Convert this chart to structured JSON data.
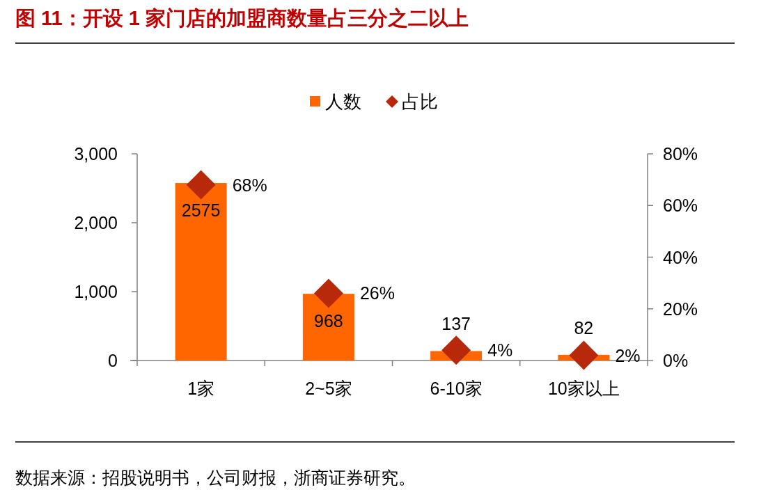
{
  "chart_data": {
    "type": "bar",
    "title": "图 11：开设 1 家门店的加盟商数量占三分之二以上",
    "categories": [
      "1家",
      "2~5家",
      "6-10家",
      "10家以上"
    ],
    "series": [
      {
        "name": "人数",
        "color": "#ff6600",
        "values": [
          2575,
          968,
          137,
          82
        ],
        "value_labels": [
          "2575",
          "968",
          "137",
          "82"
        ]
      },
      {
        "name": "占比",
        "type": "scatter",
        "axis": "y2",
        "color": "#b8290b",
        "values": [
          68,
          26,
          4,
          2
        ],
        "value_labels": [
          "68%",
          "26%",
          "4%",
          "2%"
        ]
      }
    ],
    "ylim": [
      0,
      3000
    ],
    "yticks": [
      0,
      {
        "value": 1000,
        "label": "1,000"
      },
      {
        "value": 2000,
        "label": "2,000"
      },
      {
        "value": 3000,
        "label": "3,000"
      }
    ],
    "y2lim": [
      0,
      80
    ],
    "y2ticks": [
      {
        "value": 0,
        "label": "0%"
      },
      {
        "value": 20,
        "label": "20%"
      },
      {
        "value": 40,
        "label": "40%"
      },
      {
        "value": 60,
        "label": "60%"
      },
      {
        "value": 80,
        "label": "80%"
      }
    ],
    "marker": "diamond",
    "legend": "top",
    "grid": false,
    "annotations": [
      "数据来源：招股说明书，公司财报，浙商证券研究。"
    ]
  }
}
